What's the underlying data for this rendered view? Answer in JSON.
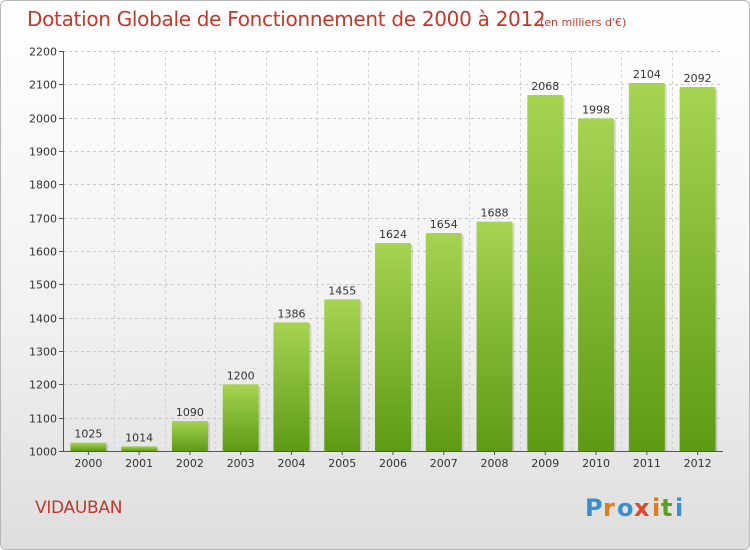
{
  "header": {
    "title": "Dotation Globale de Fonctionnement de 2000 à 2012",
    "subtitle": "(en milliers d'€)"
  },
  "footer": {
    "commune": "VIDAUBAN",
    "logo_text": "Proxiti"
  },
  "colors": {
    "title": "#c0392b",
    "bar_light": "#a6d452",
    "bar_dark": "#5e9a16",
    "logo": [
      "#3a8fd0",
      "#e07b1a",
      "#3a8fd0",
      "#d94b2a",
      "#e07b1a",
      "#5a9f21",
      "#3a8fd0"
    ]
  },
  "chart_data": {
    "type": "bar",
    "title": "Dotation Globale de Fonctionnement de 2000 à 2012",
    "subtitle": "(en milliers d'€)",
    "xlabel": "",
    "ylabel": "",
    "categories": [
      "2000",
      "2001",
      "2002",
      "2003",
      "2004",
      "2005",
      "2006",
      "2007",
      "2008",
      "2009",
      "2010",
      "2011",
      "2012"
    ],
    "values": [
      1025,
      1014,
      1090,
      1200,
      1386,
      1455,
      1624,
      1654,
      1688,
      2068,
      1998,
      2104,
      2092
    ],
    "ylim": [
      1000,
      2200
    ],
    "yticks": [
      1000,
      1100,
      1200,
      1300,
      1400,
      1500,
      1600,
      1700,
      1800,
      1900,
      2000,
      2100,
      2200
    ],
    "grid": true,
    "legend": "none"
  }
}
